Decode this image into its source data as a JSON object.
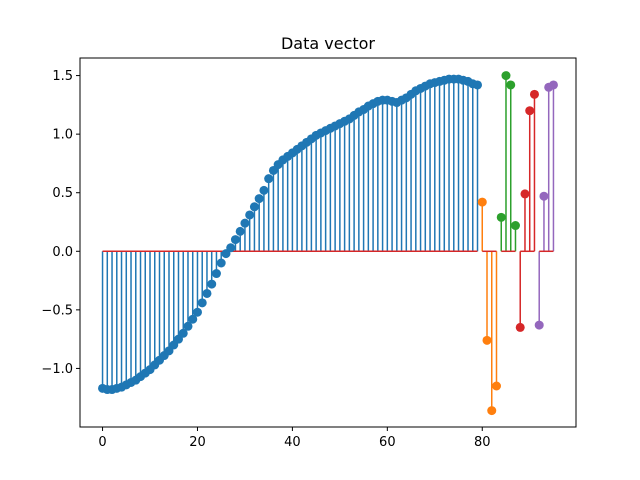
{
  "chart_data": {
    "type": "stem",
    "title": "Data vector",
    "xlabel": "",
    "ylabel": "",
    "xlim": [
      -4.75,
      99.75
    ],
    "ylim": [
      -1.5,
      1.65
    ],
    "xticks": [
      0,
      20,
      40,
      60,
      80
    ],
    "xtick_labels": [
      "0",
      "20",
      "40",
      "60",
      "80"
    ],
    "yticks": [
      -1.0,
      -0.5,
      0.0,
      0.5,
      1.0,
      1.5
    ],
    "ytick_labels": [
      "−1.0",
      "−0.5",
      "0.0",
      "0.5",
      "1.0",
      "1.5"
    ],
    "grid": false,
    "baseline_color": "#d62728",
    "series": [
      {
        "color": "#1f77b4",
        "x": [
          0,
          1,
          2,
          3,
          4,
          5,
          6,
          7,
          8,
          9,
          10,
          11,
          12,
          13,
          14,
          15,
          16,
          17,
          18,
          19,
          20,
          21,
          22,
          23,
          24,
          25,
          26,
          27,
          28,
          29,
          30,
          31,
          32,
          33,
          34,
          35,
          36,
          37,
          38,
          39,
          40,
          41,
          42,
          43,
          44,
          45,
          46,
          47,
          48,
          49,
          50,
          51,
          52,
          53,
          54,
          55,
          56,
          57,
          58,
          59,
          60,
          61,
          62,
          63,
          64,
          65,
          66,
          67,
          68,
          69,
          70,
          71,
          72,
          73,
          74,
          75,
          76,
          77,
          78,
          79
        ],
        "values": [
          -1.17,
          -1.18,
          -1.18,
          -1.17,
          -1.16,
          -1.14,
          -1.12,
          -1.1,
          -1.07,
          -1.04,
          -1.01,
          -0.97,
          -0.93,
          -0.89,
          -0.85,
          -0.8,
          -0.75,
          -0.7,
          -0.64,
          -0.58,
          -0.52,
          -0.44,
          -0.36,
          -0.28,
          -0.19,
          -0.1,
          -0.02,
          0.03,
          0.1,
          0.17,
          0.24,
          0.31,
          0.38,
          0.45,
          0.52,
          0.62,
          0.69,
          0.74,
          0.78,
          0.81,
          0.84,
          0.87,
          0.9,
          0.93,
          0.96,
          0.99,
          1.01,
          1.03,
          1.05,
          1.07,
          1.09,
          1.11,
          1.13,
          1.16,
          1.19,
          1.21,
          1.24,
          1.26,
          1.28,
          1.29,
          1.29,
          1.28,
          1.27,
          1.29,
          1.31,
          1.34,
          1.37,
          1.39,
          1.41,
          1.43,
          1.44,
          1.45,
          1.46,
          1.47,
          1.47,
          1.47,
          1.46,
          1.45,
          1.43,
          1.42
        ]
      },
      {
        "color": "#ff7f0e",
        "x": [
          80,
          81,
          82,
          83
        ],
        "values": [
          0.42,
          -0.76,
          -1.36,
          -1.15
        ]
      },
      {
        "color": "#2ca02c",
        "x": [
          84,
          85,
          86,
          87
        ],
        "values": [
          0.29,
          1.5,
          1.42,
          0.22
        ]
      },
      {
        "color": "#d62728",
        "x": [
          88,
          89,
          90,
          91
        ],
        "values": [
          -0.65,
          0.49,
          1.2,
          1.34
        ]
      },
      {
        "color": "#9467bd",
        "x": [
          92,
          93,
          94,
          95
        ],
        "values": [
          -0.63,
          0.47,
          1.4,
          1.42
        ]
      }
    ]
  }
}
